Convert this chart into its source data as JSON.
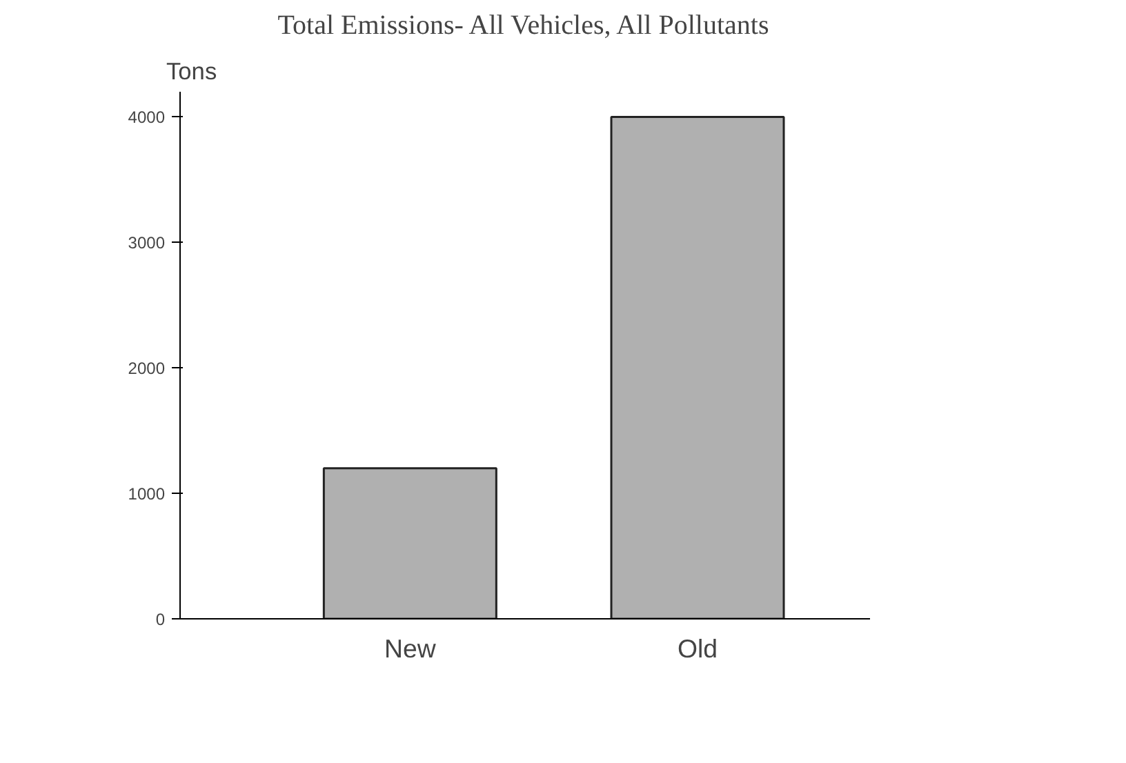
{
  "chart_data": {
    "type": "bar",
    "title": "Total Emissions- All Vehicles, All Pollutants",
    "ylabel": "Tons",
    "categories": [
      "New",
      "Old"
    ],
    "values": [
      1200,
      4000
    ],
    "color": "#b0b0b0",
    "ylim": [
      0,
      4200
    ],
    "yticks": [
      0,
      1000,
      2000,
      3000,
      4000
    ],
    "grid": false
  }
}
